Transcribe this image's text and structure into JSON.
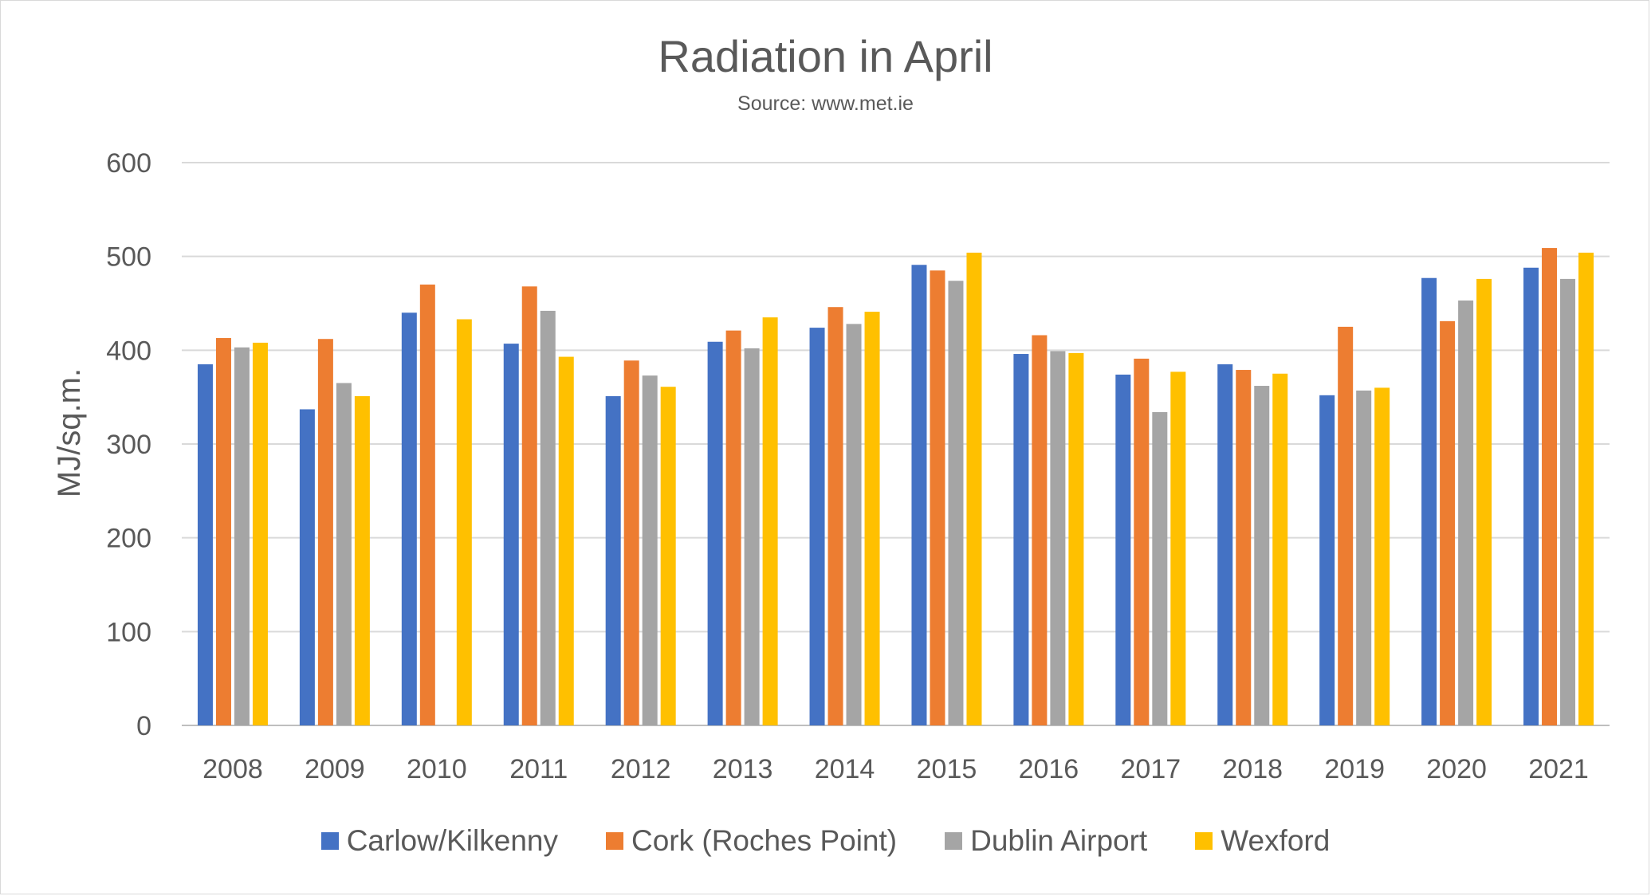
{
  "chart_data": {
    "type": "bar",
    "title": "Radiation in April",
    "subtitle": "Source: www.met.ie",
    "xlabel": "",
    "ylabel": "MJ/sq.m.",
    "ylim": [
      0,
      600
    ],
    "yticks": [
      0,
      100,
      200,
      300,
      400,
      500,
      600
    ],
    "grid": true,
    "legend_position": "bottom",
    "categories": [
      "2008",
      "2009",
      "2010",
      "2011",
      "2012",
      "2013",
      "2014",
      "2015",
      "2016",
      "2017",
      "2018",
      "2019",
      "2020",
      "2021"
    ],
    "series": [
      {
        "name": "Carlow/Kilkenny",
        "color": "#4472C4",
        "values": [
          385,
          337,
          440,
          407,
          351,
          409,
          424,
          491,
          396,
          374,
          385,
          352,
          477,
          488
        ]
      },
      {
        "name": "Cork (Roches Point)",
        "color": "#ED7D31",
        "values": [
          413,
          412,
          470,
          468,
          389,
          421,
          446,
          485,
          416,
          391,
          379,
          425,
          431,
          509
        ]
      },
      {
        "name": "Dublin Airport",
        "color": "#A5A5A5",
        "values": [
          403,
          365,
          null,
          442,
          373,
          402,
          428,
          474,
          399,
          334,
          362,
          357,
          453,
          476
        ]
      },
      {
        "name": "Wexford",
        "color": "#FFC000",
        "values": [
          408,
          351,
          433,
          393,
          361,
          435,
          441,
          504,
          397,
          377,
          375,
          360,
          476,
          504
        ]
      }
    ]
  }
}
